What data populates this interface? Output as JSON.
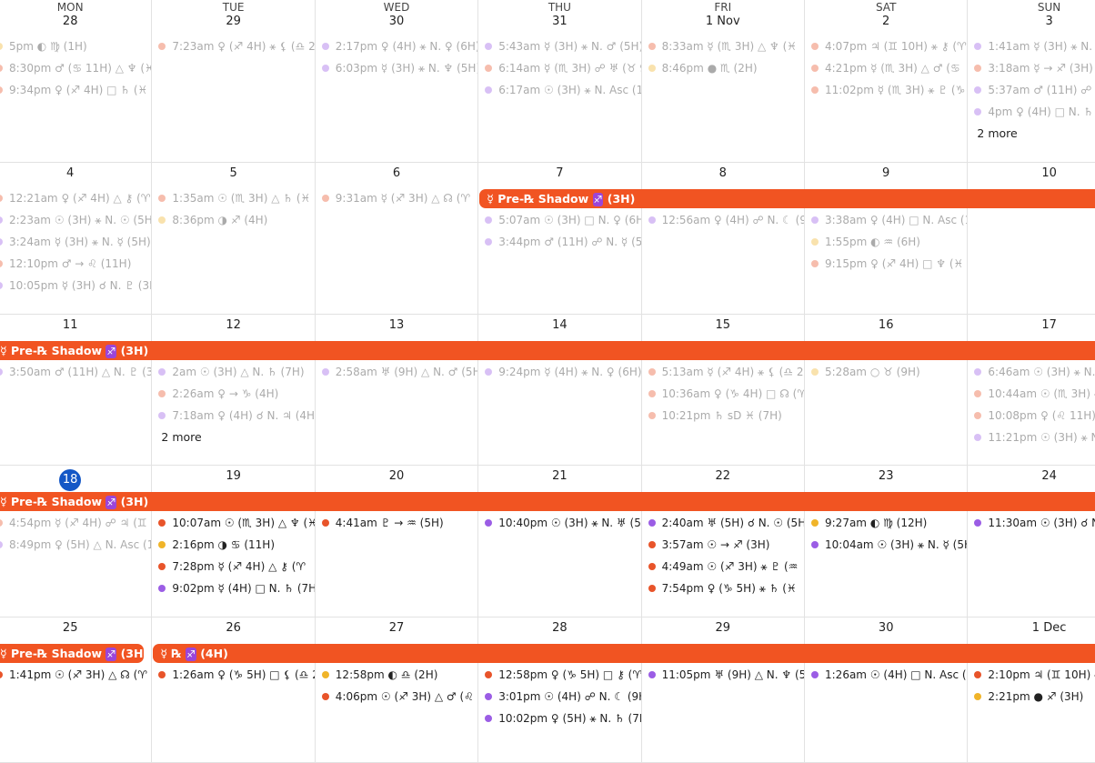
{
  "colors": {
    "orange": "#e8542a",
    "yellow": "#f0b429",
    "purple": "#9b5de5",
    "bar": "#f15422",
    "today": "#1457c6"
  },
  "weekdays": [
    "MON",
    "TUE",
    "WED",
    "THU",
    "FRI",
    "SAT",
    "SUN"
  ],
  "today": "18",
  "weeks": [
    {
      "bars": [],
      "days": [
        {
          "date": "28",
          "events": [
            {
              "time": "5pm",
              "text": "◐ ♍ (1H)",
              "color": "yellow",
              "faded": true
            },
            {
              "time": "8:30pm",
              "text": "♂ (♋ 11H) △ ♆ (♓",
              "color": "orange",
              "faded": true
            },
            {
              "time": "9:34pm",
              "text": "♀ (♐ 4H) □ ♄ (♓",
              "color": "orange",
              "faded": true
            }
          ]
        },
        {
          "date": "29",
          "events": [
            {
              "time": "7:23am",
              "text": "♀ (♐ 4H) ⚹ ⚸ (♎ 2",
              "color": "orange",
              "faded": true
            }
          ]
        },
        {
          "date": "30",
          "events": [
            {
              "time": "2:17pm",
              "text": "♀ (4H) ⚹ N. ♀ (6H)",
              "color": "purple",
              "faded": true
            },
            {
              "time": "6:03pm",
              "text": "☿ (3H) ⚹ N. ♆ (5H)",
              "color": "purple",
              "faded": true
            }
          ]
        },
        {
          "date": "31",
          "events": [
            {
              "time": "5:43am",
              "text": "☿ (3H) ⚹ N. ♂ (5H)",
              "color": "purple",
              "faded": true
            },
            {
              "time": "6:14am",
              "text": "☿ (♏ 3H) ☍ ♅ (♉ 9",
              "color": "orange",
              "faded": true
            },
            {
              "time": "6:17am",
              "text": "☉ (3H) ⚹ N. Asc (1H",
              "color": "purple",
              "faded": true
            }
          ]
        },
        {
          "date": "1 Nov",
          "events": [
            {
              "time": "8:33am",
              "text": "☿ (♏ 3H) △ ♆ (♓",
              "color": "orange",
              "faded": true
            },
            {
              "time": "8:46pm",
              "text": "● ♏ (2H)",
              "color": "yellow",
              "faded": true
            }
          ]
        },
        {
          "date": "2",
          "events": [
            {
              "time": "4:07pm",
              "text": "♃ (♊ 10H) ⚹ ⚷ (♈",
              "color": "orange",
              "faded": true
            },
            {
              "time": "4:21pm",
              "text": "☿ (♏ 3H) △ ♂ (♋",
              "color": "orange",
              "faded": true
            },
            {
              "time": "11:02pm",
              "text": "☿ (♏ 3H) ⚹ ♇ (♑",
              "color": "orange",
              "faded": true
            }
          ]
        },
        {
          "date": "3",
          "events": [
            {
              "time": "1:41am",
              "text": "☿ (3H) ⚹ N. ♅ (",
              "color": "purple",
              "faded": true
            },
            {
              "time": "3:18am",
              "text": "☿ → ♐ (3H)",
              "color": "orange",
              "faded": true
            },
            {
              "time": "5:37am",
              "text": "♂ (11H) ☍ N. ♅",
              "color": "purple",
              "faded": true
            },
            {
              "time": "4pm",
              "text": "♀ (4H) □ N. ♄ (7H",
              "color": "purple",
              "faded": true
            }
          ],
          "more": "2 more"
        }
      ]
    },
    {
      "bars": [
        {
          "label": "☿ Pre-℞ Shadow ♐ (3H)",
          "start": 3,
          "end": 6,
          "open_end": true
        }
      ],
      "days": [
        {
          "date": "4",
          "events": [
            {
              "time": "12:21am",
              "text": "♀ (♐ 4H) △ ⚷ (♈",
              "color": "orange",
              "faded": true
            },
            {
              "time": "2:23am",
              "text": "☉ (3H) ⚹ N. ☉ (5H",
              "color": "purple",
              "faded": true
            },
            {
              "time": "3:24am",
              "text": "☿ (3H) ⚹ N. ☿ (5H)",
              "color": "purple",
              "faded": true
            },
            {
              "time": "12:10pm",
              "text": "♂ → ♌ (11H)",
              "color": "orange",
              "faded": true
            },
            {
              "time": "10:05pm",
              "text": "☿ (3H) ☌ N. ♇ (3H)",
              "color": "purple",
              "faded": true
            }
          ]
        },
        {
          "date": "5",
          "events": [
            {
              "time": "1:35am",
              "text": "☉ (♏ 3H) △ ♄ (♓",
              "color": "orange",
              "faded": true
            },
            {
              "time": "8:36pm",
              "text": "◑ ♐ (4H)",
              "color": "yellow",
              "faded": true
            }
          ]
        },
        {
          "date": "6",
          "events": [
            {
              "time": "9:31am",
              "text": "☿ (♐ 3H) △ ☊ (♈",
              "color": "orange",
              "faded": true
            }
          ]
        },
        {
          "date": "7",
          "events": [
            {
              "time": "5:07am",
              "text": "☉ (3H) □ N. ♀ (6H)",
              "color": "purple",
              "faded": true
            },
            {
              "time": "3:44pm",
              "text": "♂ (11H) ☍ N. ☿ (5H)",
              "color": "purple",
              "faded": true
            }
          ]
        },
        {
          "date": "8",
          "events": [
            {
              "time": "12:56am",
              "text": "♀ (4H) ☍ N. ☾ (9H)",
              "color": "purple",
              "faded": true
            }
          ]
        },
        {
          "date": "9",
          "events": [
            {
              "time": "3:38am",
              "text": "♀ (4H) □ N. Asc (1H",
              "color": "purple",
              "faded": true
            },
            {
              "time": "1:55pm",
              "text": "◐ ♒ (6H)",
              "color": "yellow",
              "faded": true
            },
            {
              "time": "9:15pm",
              "text": "♀ (♐ 4H) □ ♆ (♓ 7",
              "color": "orange",
              "faded": true
            }
          ]
        },
        {
          "date": "10",
          "events": []
        }
      ]
    },
    {
      "bars": [
        {
          "label": "☿ Pre-℞ Shadow ♐ (3H)",
          "start": 0,
          "end": 6,
          "open_start": true,
          "open_end": true
        }
      ],
      "days": [
        {
          "date": "11",
          "events": [
            {
              "time": "3:50am",
              "text": "♂ (11H) △ N. ♇ (3H",
              "color": "purple",
              "faded": true
            }
          ]
        },
        {
          "date": "12",
          "events": [
            {
              "time": "2am",
              "text": "☉ (3H) △ N. ♄ (7H)",
              "color": "purple",
              "faded": true
            },
            {
              "time": "2:26am",
              "text": "♀ → ♑ (4H)",
              "color": "orange",
              "faded": true
            },
            {
              "time": "7:18am",
              "text": "♀ (4H) ☌ N. ♃ (4H)",
              "color": "purple",
              "faded": true
            }
          ],
          "more": "2 more"
        },
        {
          "date": "13",
          "events": [
            {
              "time": "2:58am",
              "text": "♅ (9H) △ N. ♂ (5H)",
              "color": "purple",
              "faded": true
            }
          ]
        },
        {
          "date": "14",
          "events": [
            {
              "time": "9:24pm",
              "text": "☿ (4H) ⚹ N. ♀ (6H)",
              "color": "purple",
              "faded": true
            }
          ]
        },
        {
          "date": "15",
          "events": [
            {
              "time": "5:13am",
              "text": "☿ (♐ 4H) ⚹ ⚸ (♎ 2",
              "color": "orange",
              "faded": true
            },
            {
              "time": "10:36am",
              "text": "♀ (♑ 4H) □ ☊ (♈",
              "color": "orange",
              "faded": true
            },
            {
              "time": "10:21pm",
              "text": "♄ sD ♓ (7H)",
              "color": "orange",
              "faded": true
            }
          ]
        },
        {
          "date": "16",
          "events": [
            {
              "time": "5:28am",
              "text": "○ ♉ (9H)",
              "color": "yellow",
              "faded": true
            }
          ]
        },
        {
          "date": "17",
          "events": [
            {
              "time": "6:46am",
              "text": "☉ (3H) ⚹ N. ♅",
              "color": "purple",
              "faded": true
            },
            {
              "time": "10:44am",
              "text": "☉ (♏ 3H) ⚹",
              "color": "orange",
              "faded": true
            },
            {
              "time": "10:08pm",
              "text": "♀ (♌ 11H) ⚹",
              "color": "orange",
              "faded": true
            },
            {
              "time": "11:21pm",
              "text": "☉ (3H) ⚹ N. ♃",
              "color": "purple",
              "faded": true
            }
          ]
        }
      ]
    },
    {
      "bars": [
        {
          "label": "☿ Pre-℞ Shadow ♐ (3H)",
          "start": 0,
          "end": 6,
          "open_start": true,
          "open_end": true
        }
      ],
      "days": [
        {
          "date": "18",
          "events": [
            {
              "time": "4:54pm",
              "text": "☿ (♐ 4H) ☍ ♃ (♊ 1",
              "color": "orange",
              "faded": true
            },
            {
              "time": "8:49pm",
              "text": "♀ (5H) △ N. Asc (1",
              "color": "purple",
              "faded": true
            }
          ]
        },
        {
          "date": "19",
          "events": [
            {
              "time": "10:07am",
              "text": "☉ (♏ 3H) △ ♆ (♓",
              "color": "orange"
            },
            {
              "time": "2:16pm",
              "text": "◑ ♋ (11H)",
              "color": "yellow"
            },
            {
              "time": "7:28pm",
              "text": "☿ (♐ 4H) △ ⚷ (♈",
              "color": "orange"
            },
            {
              "time": "9:02pm",
              "text": "☿ (4H) □ N. ♄ (7H)",
              "color": "purple"
            }
          ]
        },
        {
          "date": "20",
          "events": [
            {
              "time": "4:41am",
              "text": "♇ → ♒ (5H)",
              "color": "orange"
            }
          ]
        },
        {
          "date": "21",
          "events": [
            {
              "time": "10:40pm",
              "text": "☉ (3H) ⚹ N. ♅ (5H",
              "color": "purple"
            }
          ]
        },
        {
          "date": "22",
          "events": [
            {
              "time": "2:40am",
              "text": "♅ (5H) ☌ N. ☉ (5H)",
              "color": "purple"
            },
            {
              "time": "3:57am",
              "text": "☉ → ♐ (3H)",
              "color": "orange"
            },
            {
              "time": "4:49am",
              "text": "☉ (♐ 3H) ⚹ ♇ (♒",
              "color": "orange"
            },
            {
              "time": "7:54pm",
              "text": "♀ (♑ 5H) ⚹ ♄ (♓",
              "color": "orange"
            }
          ]
        },
        {
          "date": "23",
          "events": [
            {
              "time": "9:27am",
              "text": "◐ ♍ (12H)",
              "color": "yellow"
            },
            {
              "time": "10:04am",
              "text": "☉ (3H) ⚹ N. ☿ (5H",
              "color": "purple"
            }
          ]
        },
        {
          "date": "24",
          "events": [
            {
              "time": "11:30am",
              "text": "☉ (3H) ☌ N.",
              "color": "purple"
            }
          ]
        }
      ]
    },
    {
      "bars": [
        {
          "label": "☿ Pre-℞ Shadow ♐ (3H)",
          "start": 0,
          "end": 0,
          "open_start": true
        },
        {
          "label": "☿ ℞ ♐ (4H)",
          "start": 1,
          "end": 6,
          "open_end": true
        }
      ],
      "days": [
        {
          "date": "25",
          "events": [
            {
              "time": "1:41pm",
              "text": "☉ (♐ 3H) △ ☊ (♈",
              "color": "orange"
            }
          ]
        },
        {
          "date": "26",
          "events": [
            {
              "time": "1:26am",
              "text": "♀ (♑ 5H) □ ⚸ (♎ 2",
              "color": "orange"
            }
          ]
        },
        {
          "date": "27",
          "events": [
            {
              "time": "12:58pm",
              "text": "◐ ♎ (2H)",
              "color": "yellow"
            },
            {
              "time": "4:06pm",
              "text": "☉ (♐ 3H) △ ♂ (♌",
              "color": "orange"
            }
          ]
        },
        {
          "date": "28",
          "events": [
            {
              "time": "12:58pm",
              "text": "♀ (♑ 5H) □ ⚷ (♈",
              "color": "orange"
            },
            {
              "time": "3:01pm",
              "text": "☉ (4H) ☍ N. ☾ (9H)",
              "color": "purple"
            },
            {
              "time": "10:02pm",
              "text": "♀ (5H) ⚹ N. ♄ (7H",
              "color": "purple"
            }
          ]
        },
        {
          "date": "29",
          "events": [
            {
              "time": "11:05pm",
              "text": "♅ (9H) △ N. ♆ (5H)",
              "color": "purple"
            }
          ]
        },
        {
          "date": "30",
          "events": [
            {
              "time": "1:26am",
              "text": "☉ (4H) □ N. Asc (1H",
              "color": "purple"
            }
          ]
        },
        {
          "date": "1 Dec",
          "events": [
            {
              "time": "2:10pm",
              "text": "♃ (♊ 10H) ⚹",
              "color": "orange"
            },
            {
              "time": "2:21pm",
              "text": "● ♐ (3H)",
              "color": "yellow"
            }
          ]
        }
      ]
    }
  ]
}
